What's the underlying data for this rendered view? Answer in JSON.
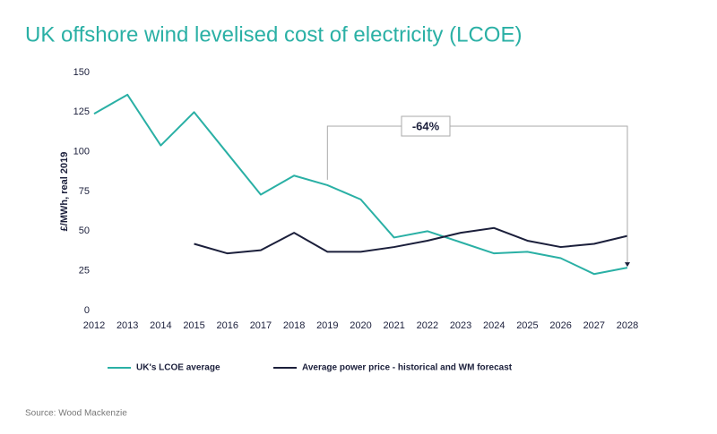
{
  "chart_data": {
    "type": "line",
    "title": "UK offshore wind levelised cost of electricity (LCOE)",
    "y_label": "£/MWh, real 2019",
    "x": [
      2012,
      2013,
      2014,
      2015,
      2016,
      2017,
      2018,
      2019,
      2020,
      2021,
      2022,
      2023,
      2024,
      2025,
      2026,
      2027,
      2028
    ],
    "xlim": [
      2012,
      2028
    ],
    "xticks": [
      2012,
      2013,
      2014,
      2015,
      2016,
      2017,
      2018,
      2019,
      2020,
      2021,
      2022,
      2023,
      2024,
      2025,
      2026,
      2027,
      2028
    ],
    "ylim": [
      0,
      150
    ],
    "yticks": [
      0,
      25,
      50,
      75,
      100,
      125,
      150
    ],
    "grid": false,
    "series": [
      {
        "name": "UK's LCOE average",
        "color": "#2ab0a5",
        "values": [
          124,
          136,
          104,
          125,
          99,
          73,
          85,
          79,
          70,
          46,
          50,
          43,
          36,
          37,
          33,
          23,
          27
        ]
      },
      {
        "name": "Average power price - historical and WM forecast",
        "color": "#1b1f3b",
        "values": [
          null,
          null,
          null,
          42,
          36,
          38,
          49,
          37,
          37,
          40,
          44,
          49,
          52,
          44,
          40,
          42,
          47
        ]
      }
    ],
    "annotation": "-64%",
    "source": "Source: Wood Mackenzie"
  }
}
